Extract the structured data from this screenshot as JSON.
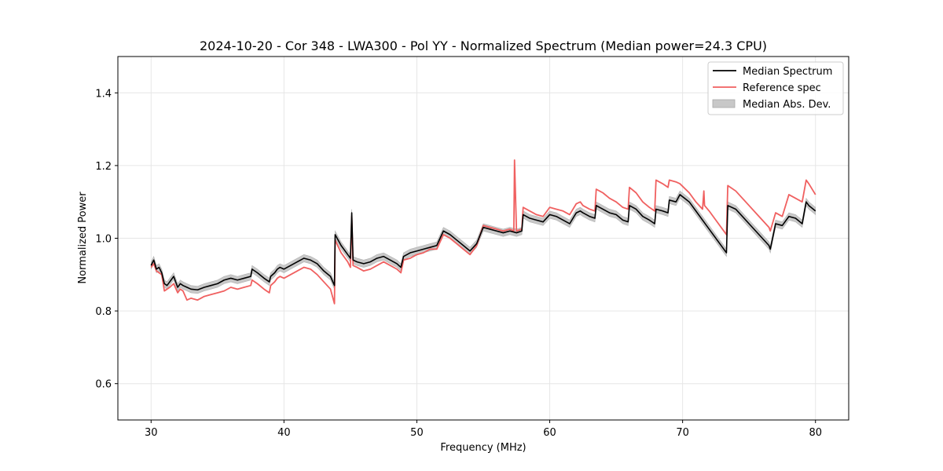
{
  "chart_data": {
    "type": "line",
    "title": "2024-10-20 - Cor 348 - LWA300 - Pol YY - Normalized Spectrum (Median power=24.3 CPU)",
    "xlabel": "Frequency (MHz)",
    "ylabel": "Normalized Power",
    "xlim": [
      27.5,
      82.5
    ],
    "ylim": [
      0.5,
      1.5
    ],
    "xticks": [
      30,
      40,
      50,
      60,
      70,
      80
    ],
    "yticks": [
      0.6,
      0.8,
      1.0,
      1.2,
      1.4
    ],
    "xtick_labels": [
      "30",
      "40",
      "50",
      "60",
      "70",
      "80"
    ],
    "ytick_labels": [
      "0.6",
      "0.8",
      "1.0",
      "1.2",
      "1.4"
    ],
    "grid": true,
    "legend_position": "top-right",
    "colors": {
      "median": "#000000",
      "reference": "#f06060",
      "mad": "#c8c8c8"
    },
    "series": [
      {
        "name": "Median Spectrum",
        "mad": 0.01,
        "x": [
          30.0,
          30.2,
          30.4,
          30.6,
          30.8,
          31.0,
          31.2,
          31.4,
          31.7,
          32.0,
          32.2,
          32.4,
          32.7,
          33.0,
          33.5,
          34.0,
          34.5,
          35.0,
          35.5,
          36.0,
          36.5,
          37.0,
          37.5,
          37.6,
          38.0,
          38.5,
          38.9,
          39.0,
          39.3,
          39.5,
          39.7,
          40.0,
          40.5,
          41.0,
          41.5,
          42.0,
          42.5,
          43.0,
          43.5,
          43.8,
          43.85,
          44.3,
          44.8,
          45.0,
          45.1,
          45.2,
          45.5,
          46.0,
          46.5,
          47.0,
          47.5,
          48.0,
          48.5,
          48.8,
          49.0,
          49.5,
          50.0,
          50.5,
          51.0,
          51.5,
          52.0,
          52.5,
          53.0,
          53.5,
          54.0,
          54.5,
          55.0,
          55.5,
          56.0,
          56.5,
          57.0,
          57.5,
          57.9,
          58.0,
          58.5,
          59.0,
          59.5,
          60.0,
          60.5,
          61.0,
          61.5,
          62.0,
          62.3,
          62.5,
          63.0,
          63.4,
          63.5,
          64.0,
          64.5,
          65.0,
          65.5,
          65.9,
          66.0,
          66.5,
          67.0,
          67.5,
          67.9,
          68.0,
          68.5,
          68.9,
          69.0,
          69.5,
          69.8,
          70.5,
          71.0,
          71.5,
          72.0,
          72.5,
          73.0,
          73.3,
          73.4,
          74.0,
          74.5,
          75.0,
          75.5,
          76.0,
          76.5,
          76.6,
          77.0,
          77.5,
          78.0,
          78.5,
          79.0,
          79.3,
          79.5,
          80.0
        ],
        "y": [
          0.925,
          0.94,
          0.915,
          0.92,
          0.905,
          0.875,
          0.87,
          0.88,
          0.895,
          0.865,
          0.875,
          0.87,
          0.865,
          0.86,
          0.858,
          0.865,
          0.87,
          0.875,
          0.885,
          0.89,
          0.885,
          0.89,
          0.895,
          0.915,
          0.905,
          0.89,
          0.88,
          0.895,
          0.905,
          0.915,
          0.92,
          0.915,
          0.925,
          0.935,
          0.945,
          0.94,
          0.93,
          0.91,
          0.895,
          0.87,
          1.01,
          0.98,
          0.955,
          0.945,
          1.07,
          0.94,
          0.935,
          0.93,
          0.935,
          0.945,
          0.95,
          0.94,
          0.93,
          0.92,
          0.95,
          0.96,
          0.965,
          0.97,
          0.975,
          0.98,
          1.02,
          1.01,
          0.995,
          0.98,
          0.965,
          0.985,
          1.03,
          1.025,
          1.02,
          1.015,
          1.02,
          1.015,
          1.02,
          1.065,
          1.055,
          1.05,
          1.045,
          1.065,
          1.06,
          1.05,
          1.04,
          1.07,
          1.075,
          1.07,
          1.06,
          1.055,
          1.09,
          1.08,
          1.07,
          1.065,
          1.05,
          1.045,
          1.09,
          1.08,
          1.06,
          1.05,
          1.04,
          1.08,
          1.075,
          1.07,
          1.105,
          1.1,
          1.12,
          1.1,
          1.075,
          1.05,
          1.025,
          1.0,
          0.975,
          0.96,
          1.09,
          1.08,
          1.06,
          1.04,
          1.02,
          1.0,
          0.98,
          0.97,
          1.04,
          1.035,
          1.06,
          1.055,
          1.04,
          1.1,
          1.09,
          1.075
        ]
      },
      {
        "name": "Reference spec",
        "x": [
          30.0,
          30.2,
          30.4,
          30.6,
          30.8,
          31.0,
          31.2,
          31.4,
          31.7,
          32.0,
          32.2,
          32.4,
          32.7,
          33.0,
          33.5,
          34.0,
          34.5,
          35.0,
          35.5,
          36.0,
          36.5,
          37.0,
          37.5,
          37.6,
          38.0,
          38.5,
          38.9,
          39.0,
          39.3,
          39.5,
          39.7,
          40.0,
          40.5,
          41.0,
          41.5,
          42.0,
          42.5,
          43.0,
          43.5,
          43.8,
          43.85,
          44.3,
          44.8,
          45.0,
          45.1,
          45.2,
          45.5,
          46.0,
          46.5,
          47.0,
          47.5,
          48.0,
          48.5,
          48.8,
          49.0,
          49.5,
          50.0,
          50.5,
          51.0,
          51.5,
          52.0,
          52.5,
          53.0,
          53.5,
          54.0,
          54.5,
          55.0,
          55.5,
          56.0,
          56.5,
          57.0,
          57.3,
          57.35,
          57.5,
          57.9,
          58.0,
          58.5,
          59.0,
          59.5,
          60.0,
          60.5,
          61.0,
          61.5,
          62.0,
          62.3,
          62.5,
          63.0,
          63.4,
          63.5,
          64.0,
          64.5,
          65.0,
          65.5,
          65.9,
          66.0,
          66.5,
          67.0,
          67.5,
          67.9,
          68.0,
          68.5,
          68.9,
          69.0,
          69.5,
          69.8,
          70.5,
          71.0,
          71.5,
          71.6,
          71.65,
          72.0,
          72.5,
          73.0,
          73.3,
          73.4,
          74.0,
          74.5,
          75.0,
          75.5,
          76.0,
          76.5,
          76.6,
          77.0,
          77.5,
          78.0,
          78.5,
          79.0,
          79.3,
          79.5,
          80.0
        ],
        "y": [
          0.92,
          0.93,
          0.91,
          0.905,
          0.9,
          0.855,
          0.86,
          0.865,
          0.875,
          0.85,
          0.86,
          0.855,
          0.83,
          0.835,
          0.83,
          0.84,
          0.845,
          0.85,
          0.855,
          0.865,
          0.86,
          0.865,
          0.87,
          0.885,
          0.875,
          0.86,
          0.85,
          0.87,
          0.88,
          0.89,
          0.895,
          0.89,
          0.9,
          0.91,
          0.92,
          0.915,
          0.9,
          0.88,
          0.86,
          0.82,
          0.995,
          0.96,
          0.935,
          0.92,
          1.06,
          0.925,
          0.92,
          0.91,
          0.915,
          0.925,
          0.935,
          0.925,
          0.915,
          0.905,
          0.94,
          0.945,
          0.955,
          0.96,
          0.97,
          0.97,
          1.01,
          1.0,
          0.985,
          0.97,
          0.955,
          0.98,
          1.035,
          1.03,
          1.025,
          1.02,
          1.025,
          1.02,
          1.215,
          1.02,
          1.025,
          1.085,
          1.075,
          1.065,
          1.06,
          1.085,
          1.08,
          1.075,
          1.065,
          1.095,
          1.1,
          1.09,
          1.08,
          1.075,
          1.135,
          1.125,
          1.11,
          1.1,
          1.085,
          1.08,
          1.14,
          1.125,
          1.1,
          1.085,
          1.075,
          1.16,
          1.15,
          1.14,
          1.16,
          1.155,
          1.15,
          1.125,
          1.1,
          1.08,
          1.13,
          1.09,
          1.075,
          1.05,
          1.025,
          1.01,
          1.145,
          1.13,
          1.11,
          1.09,
          1.07,
          1.05,
          1.03,
          1.02,
          1.07,
          1.06,
          1.12,
          1.11,
          1.1,
          1.16,
          1.15,
          1.12
        ]
      },
      {
        "name": "Median Abs. Dev."
      }
    ]
  }
}
